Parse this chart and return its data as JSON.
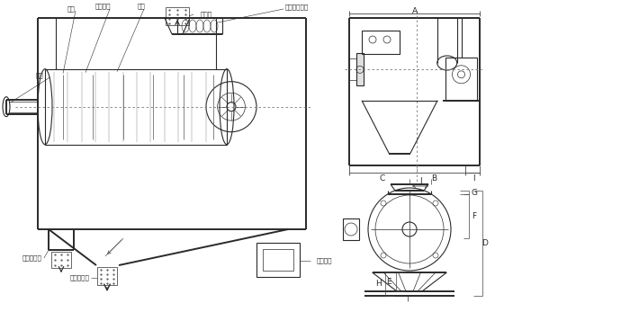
{
  "bg_color": "#ffffff",
  "line_color": "#2a2a2a",
  "label_color": "#2a2a2a",
  "fig_width": 7.0,
  "fig_height": 3.47,
  "dpi": 100,
  "labels": {
    "wind_wheel": "风轮",
    "fan_blade": "风轮叶片",
    "screen": "网架",
    "main_shaft": "主轴",
    "feed_inlet": "进料口",
    "screw_conveyor": "螺旋输送系统",
    "coarse_outlet": "粗料排出口",
    "fine_outlet": "细料排出口",
    "drive_motor": "驱动电机",
    "dim_A": "A",
    "dim_B": "B",
    "dim_C": "C",
    "dim_I": "I",
    "dim_J": "J",
    "dim_G": "G",
    "dim_F": "F",
    "dim_D": "D",
    "dim_E": "E",
    "dim_H": "H"
  }
}
